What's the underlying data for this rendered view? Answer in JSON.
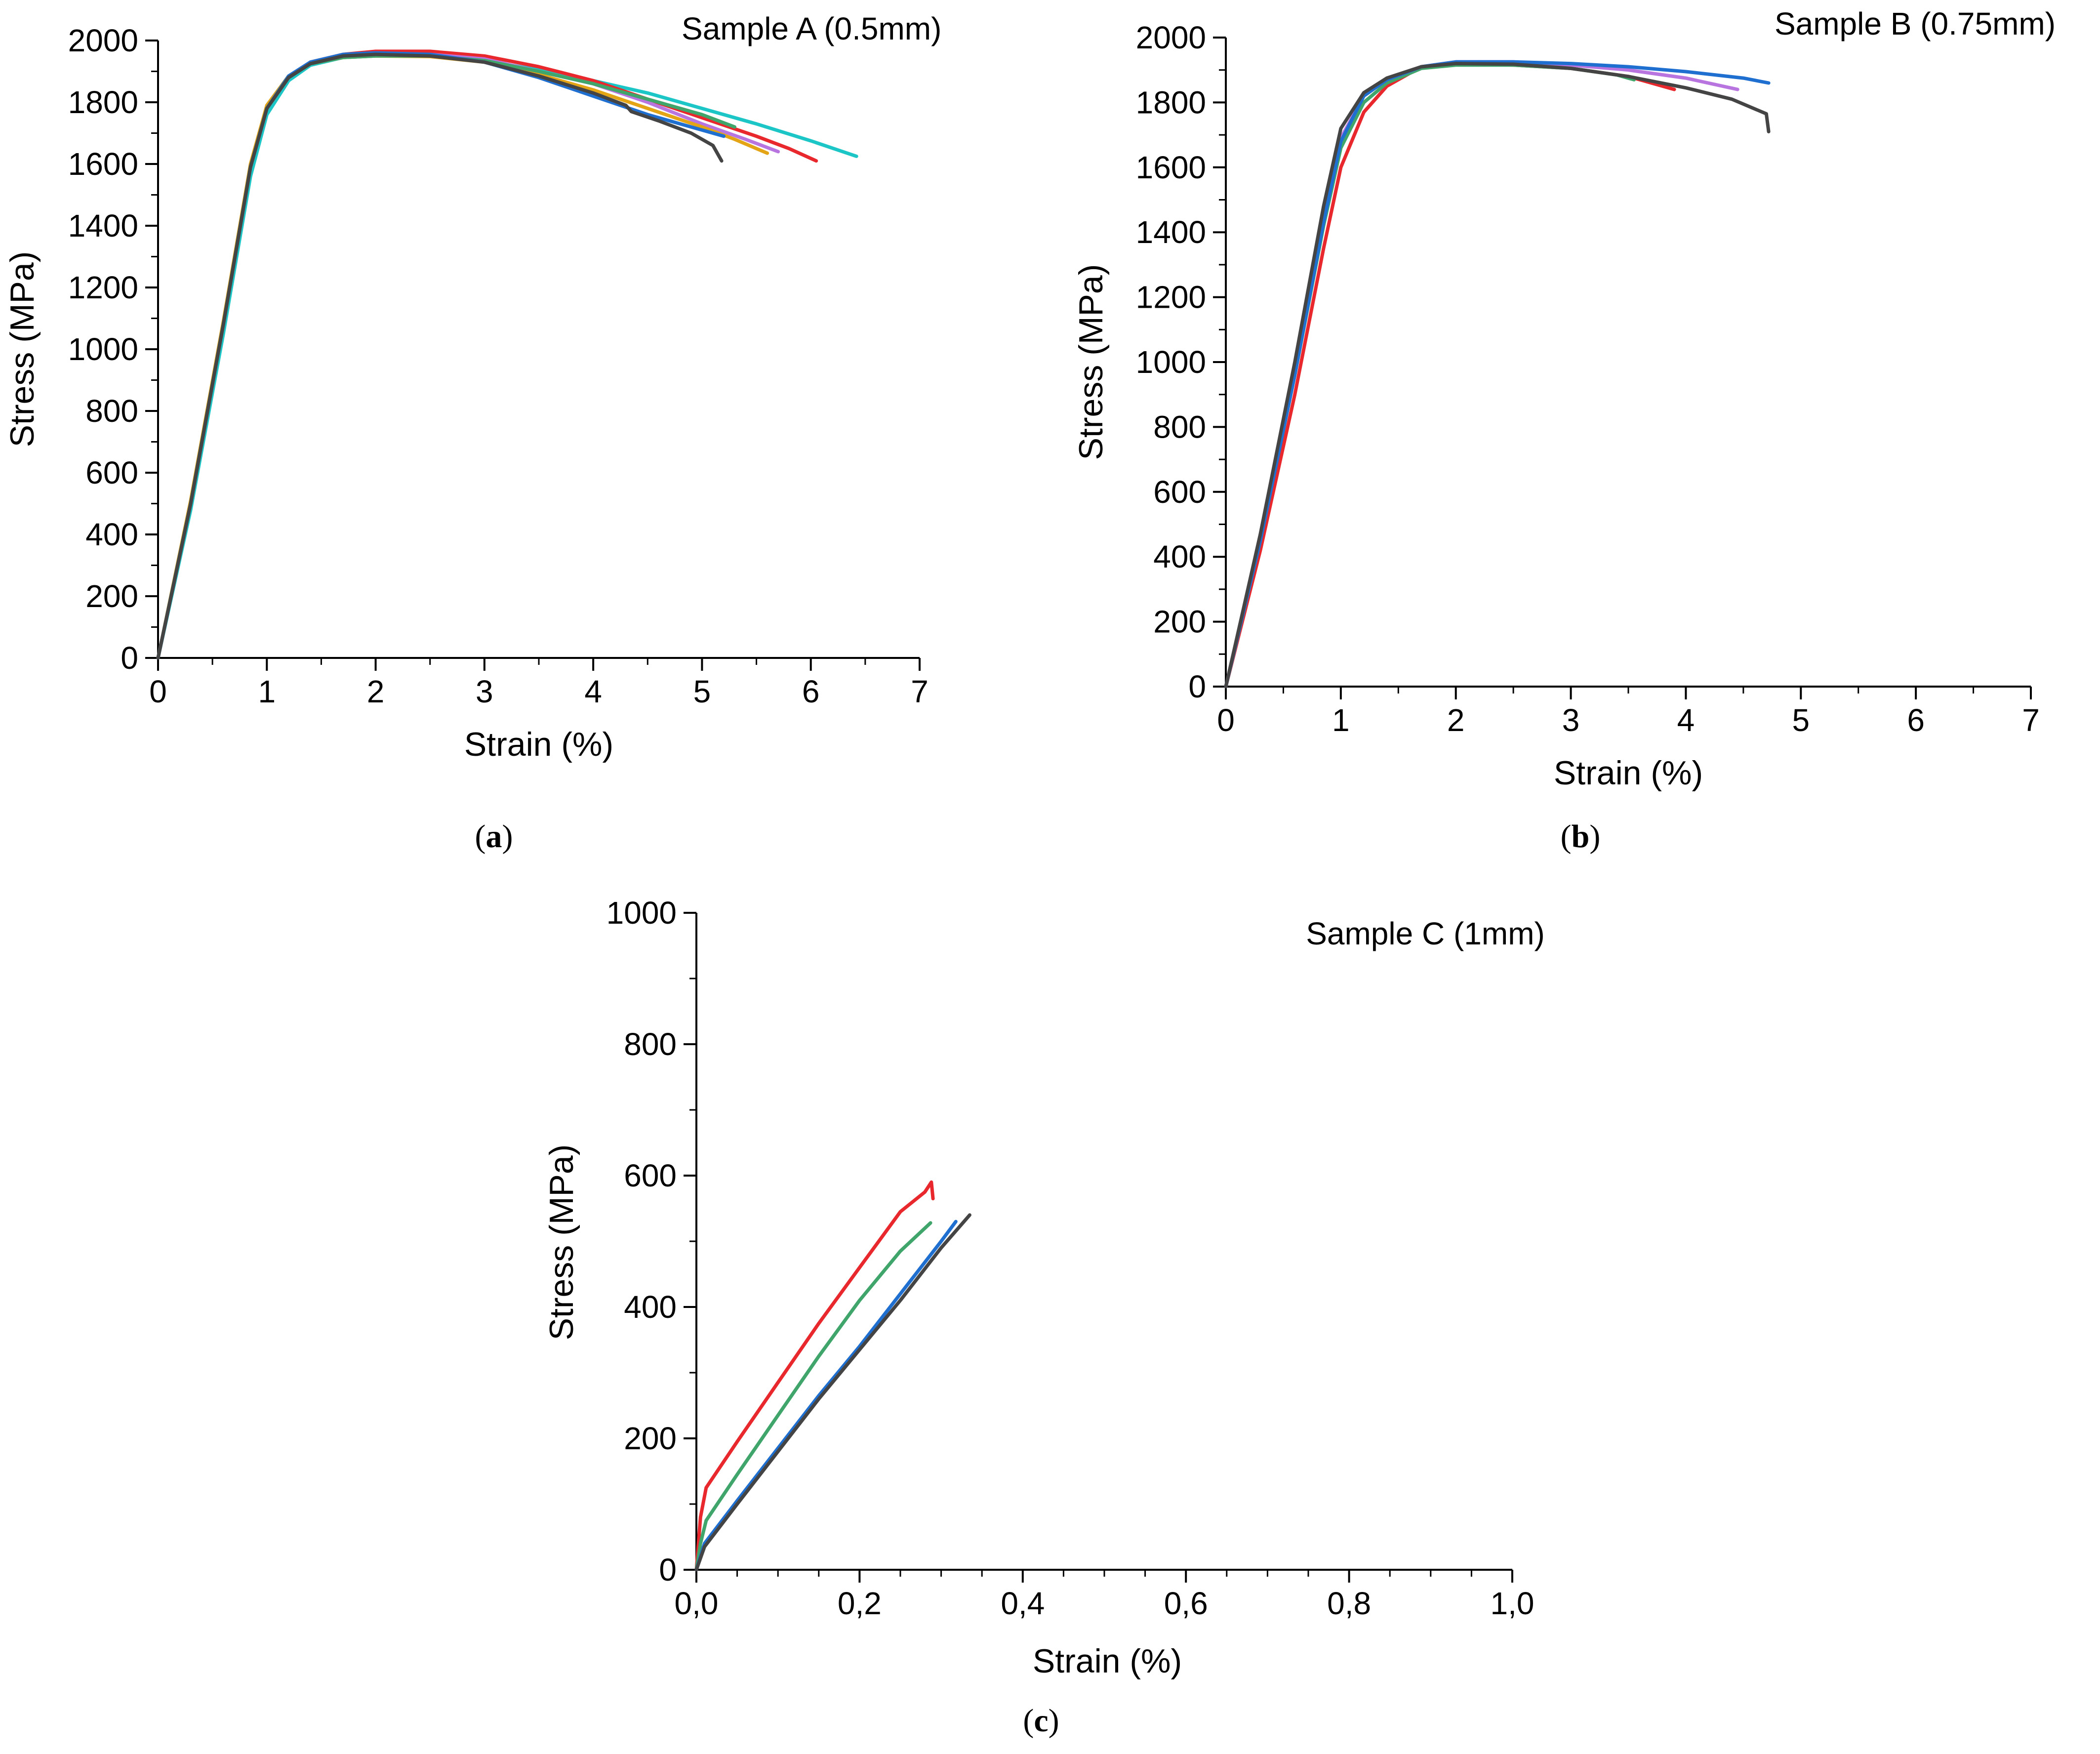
{
  "chart_data": [
    {
      "type": "line",
      "panel": "a",
      "caption": "a",
      "title": "Sample A (0.5mm)",
      "xlabel": "Strain (%)",
      "ylabel": "Stress (MPa)",
      "xlim": [
        0,
        7
      ],
      "ylim": [
        0,
        2000
      ],
      "xticks": [
        "0",
        "1",
        "2",
        "3",
        "4",
        "5",
        "6",
        "7"
      ],
      "yticks": [
        "0",
        "200",
        "400",
        "600",
        "800",
        "1000",
        "1200",
        "1400",
        "1600",
        "1800",
        "2000"
      ],
      "grid": false,
      "series": [
        {
          "name": "cyan",
          "color": "#1cc6c6",
          "x": [
            0,
            0.3,
            0.6,
            0.85,
            1.0,
            1.2,
            1.4,
            1.7,
            2.0,
            2.5,
            3.0,
            3.5,
            4.0,
            4.5,
            5.0,
            5.5,
            6.0,
            6.42
          ],
          "y": [
            0,
            480,
            1050,
            1560,
            1760,
            1870,
            1920,
            1945,
            1950,
            1950,
            1935,
            1905,
            1870,
            1830,
            1780,
            1730,
            1675,
            1625
          ]
        },
        {
          "name": "red",
          "color": "#e8282d",
          "x": [
            0,
            0.3,
            0.6,
            0.85,
            1.0,
            1.2,
            1.4,
            1.7,
            2.0,
            2.5,
            3.0,
            3.5,
            4.0,
            4.5,
            5.0,
            5.5,
            5.8,
            6.05
          ],
          "y": [
            0,
            500,
            1080,
            1590,
            1780,
            1880,
            1930,
            1955,
            1965,
            1965,
            1950,
            1915,
            1870,
            1810,
            1750,
            1690,
            1650,
            1610
          ]
        },
        {
          "name": "violet",
          "color": "#b875e0",
          "x": [
            0,
            0.3,
            0.6,
            0.85,
            1.0,
            1.2,
            1.4,
            1.7,
            2.0,
            2.5,
            3.0,
            3.5,
            4.0,
            4.5,
            5.0,
            5.4,
            5.7
          ],
          "y": [
            0,
            500,
            1080,
            1590,
            1780,
            1880,
            1930,
            1950,
            1955,
            1955,
            1940,
            1900,
            1860,
            1800,
            1730,
            1680,
            1640
          ]
        },
        {
          "name": "orange",
          "color": "#e3a416",
          "x": [
            0,
            0.3,
            0.6,
            0.85,
            1.0,
            1.2,
            1.4,
            1.7,
            2.0,
            2.5,
            3.0,
            3.5,
            4.0,
            4.5,
            5.0,
            5.3,
            5.6
          ],
          "y": [
            0,
            510,
            1090,
            1600,
            1790,
            1885,
            1925,
            1945,
            1950,
            1948,
            1930,
            1890,
            1840,
            1780,
            1720,
            1680,
            1635
          ]
        },
        {
          "name": "green",
          "color": "#3fa56b",
          "x": [
            0,
            0.3,
            0.6,
            0.85,
            1.0,
            1.2,
            1.4,
            1.7,
            2.0,
            2.5,
            3.0,
            3.5,
            4.0,
            4.5,
            5.0,
            5.3
          ],
          "y": [
            0,
            500,
            1080,
            1590,
            1780,
            1880,
            1925,
            1945,
            1950,
            1950,
            1935,
            1900,
            1860,
            1810,
            1760,
            1720
          ]
        },
        {
          "name": "blue",
          "color": "#1f6fd0",
          "x": [
            0,
            0.3,
            0.6,
            0.85,
            1.0,
            1.2,
            1.4,
            1.7,
            2.0,
            2.5,
            3.0,
            3.5,
            4.0,
            4.5,
            5.0,
            5.2
          ],
          "y": [
            0,
            500,
            1080,
            1590,
            1780,
            1885,
            1930,
            1955,
            1960,
            1955,
            1930,
            1880,
            1820,
            1760,
            1710,
            1690
          ]
        },
        {
          "name": "black",
          "color": "#444444",
          "x": [
            0,
            0.3,
            0.6,
            0.85,
            1.0,
            1.2,
            1.4,
            1.7,
            2.0,
            2.5,
            3.0,
            3.5,
            4.0,
            4.3,
            4.35,
            4.6,
            4.9,
            5.1,
            5.18
          ],
          "y": [
            0,
            500,
            1080,
            1590,
            1780,
            1880,
            1925,
            1950,
            1955,
            1950,
            1930,
            1885,
            1830,
            1790,
            1770,
            1740,
            1700,
            1660,
            1610
          ]
        }
      ]
    },
    {
      "type": "line",
      "panel": "b",
      "caption": "b",
      "title": "Sample B (0.75mm)",
      "xlabel": "Strain (%)",
      "ylabel": "Stress (MPa)",
      "xlim": [
        0,
        7
      ],
      "ylim": [
        0,
        2000
      ],
      "xticks": [
        "0",
        "1",
        "2",
        "3",
        "4",
        "5",
        "6",
        "7"
      ],
      "yticks": [
        "0",
        "200",
        "400",
        "600",
        "800",
        "1000",
        "1200",
        "1400",
        "1600",
        "1800",
        "2000"
      ],
      "grid": false,
      "series": [
        {
          "name": "red",
          "color": "#e8282d",
          "x": [
            0,
            0.3,
            0.6,
            0.85,
            1.0,
            1.2,
            1.4,
            1.7,
            2.0,
            2.5,
            3.0,
            3.5,
            3.9
          ],
          "y": [
            0,
            420,
            900,
            1350,
            1600,
            1770,
            1850,
            1910,
            1920,
            1915,
            1905,
            1880,
            1840
          ]
        },
        {
          "name": "green",
          "color": "#3fa56b",
          "x": [
            0,
            0.3,
            0.6,
            0.85,
            1.0,
            1.2,
            1.4,
            1.7,
            2.0,
            2.5,
            3.0,
            3.4,
            3.55
          ],
          "y": [
            0,
            450,
            960,
            1420,
            1660,
            1800,
            1860,
            1905,
            1915,
            1915,
            1905,
            1885,
            1870
          ]
        },
        {
          "name": "violet",
          "color": "#b875e0",
          "x": [
            0,
            0.3,
            0.6,
            0.85,
            1.0,
            1.2,
            1.4,
            1.7,
            2.0,
            2.5,
            3.0,
            3.5,
            4.0,
            4.45
          ],
          "y": [
            0,
            460,
            980,
            1450,
            1690,
            1820,
            1870,
            1910,
            1925,
            1925,
            1915,
            1900,
            1875,
            1840
          ]
        },
        {
          "name": "blue",
          "color": "#1f6fd0",
          "x": [
            0,
            0.3,
            0.6,
            0.85,
            1.0,
            1.2,
            1.4,
            1.7,
            2.0,
            2.5,
            3.0,
            3.5,
            4.0,
            4.5,
            4.72
          ],
          "y": [
            0,
            450,
            960,
            1430,
            1680,
            1820,
            1870,
            1910,
            1925,
            1925,
            1920,
            1910,
            1895,
            1875,
            1860
          ]
        },
        {
          "name": "black",
          "color": "#444444",
          "x": [
            0,
            0.3,
            0.6,
            0.85,
            1.0,
            1.2,
            1.4,
            1.7,
            2.0,
            2.5,
            3.0,
            3.5,
            4.0,
            4.4,
            4.7,
            4.72
          ],
          "y": [
            0,
            470,
            1000,
            1480,
            1720,
            1830,
            1875,
            1910,
            1920,
            1918,
            1905,
            1880,
            1845,
            1810,
            1765,
            1710
          ]
        }
      ]
    },
    {
      "type": "line",
      "panel": "c",
      "caption": "c",
      "title": "Sample C (1mm)",
      "xlabel": "Strain (%)",
      "ylabel": "Stress (MPa)",
      "xlim": [
        0,
        1.0
      ],
      "ylim": [
        0,
        1000
      ],
      "xticks": [
        "0,0",
        "0,2",
        "0,4",
        "0,6",
        "0,8",
        "1,0"
      ],
      "yticks": [
        "0",
        "200",
        "400",
        "600",
        "800",
        "1000"
      ],
      "grid": false,
      "series": [
        {
          "name": "red",
          "color": "#e8282d",
          "x": [
            0,
            0.005,
            0.012,
            0.05,
            0.1,
            0.15,
            0.2,
            0.25,
            0.28,
            0.288,
            0.29
          ],
          "y": [
            0,
            80,
            125,
            195,
            285,
            375,
            460,
            545,
            575,
            590,
            565
          ]
        },
        {
          "name": "green",
          "color": "#3fa56b",
          "x": [
            0,
            0.005,
            0.012,
            0.05,
            0.1,
            0.15,
            0.2,
            0.25,
            0.287
          ],
          "y": [
            0,
            40,
            75,
            145,
            235,
            325,
            410,
            485,
            528
          ]
        },
        {
          "name": "blue",
          "color": "#1f6fd0",
          "x": [
            0,
            0.01,
            0.05,
            0.1,
            0.15,
            0.2,
            0.25,
            0.3,
            0.318
          ],
          "y": [
            0,
            40,
            105,
            185,
            265,
            340,
            420,
            500,
            530
          ]
        },
        {
          "name": "black",
          "color": "#444444",
          "x": [
            0,
            0.01,
            0.05,
            0.1,
            0.15,
            0.2,
            0.25,
            0.3,
            0.335
          ],
          "y": [
            0,
            35,
            100,
            180,
            260,
            335,
            410,
            490,
            540
          ]
        }
      ]
    }
  ]
}
